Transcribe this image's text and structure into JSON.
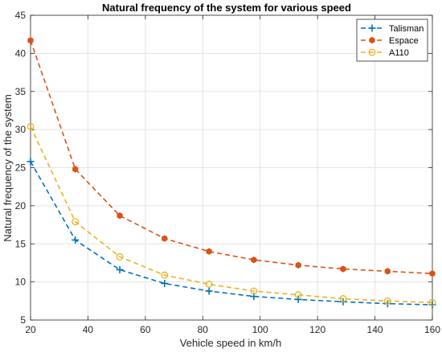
{
  "chart_data": {
    "type": "line",
    "title": "Natural frequency of the system for various speed",
    "xlabel": "Vehicle speed in km/h",
    "ylabel": "Natural frequency of the system",
    "xlim": [
      20,
      160
    ],
    "ylim": [
      5,
      45
    ],
    "xticks": [
      20,
      40,
      60,
      80,
      100,
      120,
      140,
      160
    ],
    "yticks": [
      5,
      10,
      15,
      20,
      25,
      30,
      35,
      40,
      45
    ],
    "grid": true,
    "legend_position": "top-right",
    "x": [
      20,
      35.6,
      51.1,
      66.7,
      82.2,
      97.8,
      113.3,
      128.9,
      144.4,
      160
    ],
    "series": [
      {
        "name": "Talisman",
        "color": "#0072BD",
        "marker": "plus",
        "values": [
          25.8,
          15.5,
          11.6,
          9.8,
          8.8,
          8.1,
          7.7,
          7.4,
          7.15,
          7.0
        ]
      },
      {
        "name": "Espace",
        "color": "#D95319",
        "marker": "hexagram",
        "values": [
          41.7,
          24.8,
          18.7,
          15.7,
          14.0,
          12.9,
          12.2,
          11.7,
          11.4,
          11.1
        ]
      },
      {
        "name": "A110",
        "color": "#EDB120",
        "marker": "circle",
        "values": [
          30.4,
          17.9,
          13.3,
          10.9,
          9.7,
          8.8,
          8.3,
          7.8,
          7.5,
          7.3
        ]
      }
    ]
  }
}
